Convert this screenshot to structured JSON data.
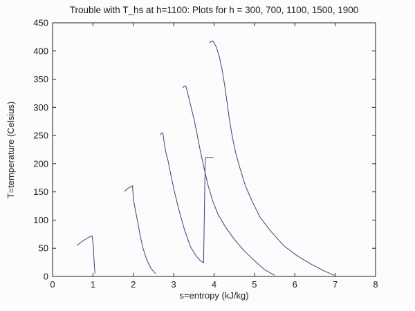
{
  "figure": {
    "background": "#fcfcfc",
    "axis_color": "#1c1c1c",
    "text_color": "#1c1c1c"
  },
  "chart_data": {
    "type": "line",
    "title": "Trouble with T_hs at h=1100: Plots for h = 300, 700, 1100, 1500, 1900",
    "xlabel": "s=entropy (kJ/kg)",
    "ylabel": "T=temperature (Celsius)",
    "xlim": [
      0,
      8
    ],
    "ylim": [
      0,
      450
    ],
    "x_ticks": [
      0,
      1,
      2,
      3,
      4,
      5,
      6,
      7,
      8
    ],
    "y_ticks": [
      0,
      50,
      100,
      150,
      200,
      250,
      300,
      350,
      400,
      450
    ],
    "grid": false,
    "legend_position": "none",
    "line_color": "#3b3b8c",
    "series": [
      {
        "name": "h=300",
        "points": [
          [
            0.6,
            55
          ],
          [
            0.73,
            62
          ],
          [
            0.86,
            68
          ],
          [
            0.98,
            72
          ],
          [
            1.01,
            53
          ],
          [
            1.02,
            37
          ],
          [
            1.04,
            15
          ],
          [
            1.05,
            5
          ]
        ]
      },
      {
        "name": "h=700",
        "points": [
          [
            1.78,
            151
          ],
          [
            1.88,
            157
          ],
          [
            1.98,
            161
          ],
          [
            2.0,
            137
          ],
          [
            2.05,
            118
          ],
          [
            2.11,
            96
          ],
          [
            2.17,
            72
          ],
          [
            2.24,
            50
          ],
          [
            2.33,
            30
          ],
          [
            2.44,
            14
          ],
          [
            2.55,
            5
          ]
        ]
      },
      {
        "name": "h=1100",
        "points": [
          [
            2.66,
            251
          ],
          [
            2.7,
            254
          ],
          [
            2.73,
            255
          ],
          [
            2.76,
            240
          ],
          [
            2.8,
            222
          ],
          [
            2.86,
            205
          ],
          [
            2.93,
            180
          ],
          [
            3.02,
            150
          ],
          [
            3.13,
            118
          ],
          [
            3.27,
            82
          ],
          [
            3.42,
            52
          ],
          [
            3.56,
            36
          ],
          [
            3.66,
            28
          ],
          [
            3.74,
            24
          ],
          [
            3.78,
            208
          ],
          [
            3.8,
            211
          ],
          [
            3.99,
            211
          ]
        ]
      },
      {
        "name": "h=1500",
        "points": [
          [
            3.22,
            335
          ],
          [
            3.26,
            337
          ],
          [
            3.3,
            338
          ],
          [
            3.33,
            330
          ],
          [
            3.38,
            315
          ],
          [
            3.44,
            298
          ],
          [
            3.51,
            277
          ],
          [
            3.58,
            252
          ],
          [
            3.66,
            222
          ],
          [
            3.75,
            193
          ],
          [
            3.85,
            162
          ],
          [
            3.96,
            135
          ],
          [
            4.1,
            110
          ],
          [
            4.28,
            88
          ],
          [
            4.5,
            66
          ],
          [
            4.75,
            45
          ],
          [
            5.0,
            28
          ],
          [
            5.25,
            12
          ],
          [
            5.5,
            2
          ]
        ]
      },
      {
        "name": "h=1900",
        "points": [
          [
            3.89,
            414
          ],
          [
            3.93,
            417
          ],
          [
            3.97,
            418
          ],
          [
            4.05,
            408
          ],
          [
            4.13,
            390
          ],
          [
            4.2,
            366
          ],
          [
            4.26,
            340
          ],
          [
            4.32,
            310
          ],
          [
            4.38,
            278
          ],
          [
            4.45,
            248
          ],
          [
            4.54,
            218
          ],
          [
            4.65,
            190
          ],
          [
            4.78,
            160
          ],
          [
            4.95,
            132
          ],
          [
            5.15,
            104
          ],
          [
            5.42,
            79
          ],
          [
            5.72,
            55
          ],
          [
            6.05,
            37
          ],
          [
            6.4,
            22
          ],
          [
            6.72,
            10
          ],
          [
            6.98,
            2
          ]
        ]
      }
    ]
  }
}
